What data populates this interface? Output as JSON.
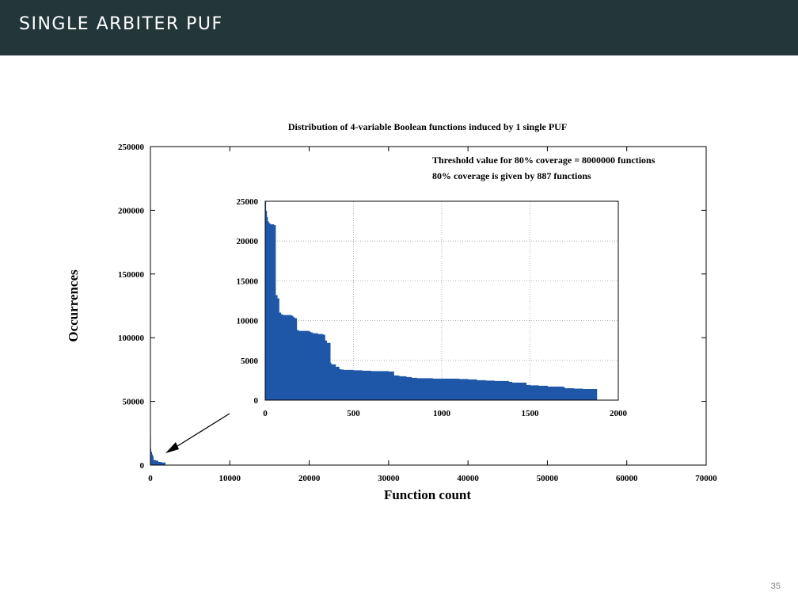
{
  "slide": {
    "title": "SINGLE ARBITER PUF",
    "page_number": "35"
  },
  "colors": {
    "header_bg": "#23373b",
    "bar_fill": "#1e56a8",
    "grid": "#a0a0a0"
  },
  "chart_data": [
    {
      "type": "area",
      "role": "main",
      "title": "Distribution of 4-variable Boolean functions induced by 1 single PUF",
      "xlabel": "Function count",
      "ylabel": "Occurrences",
      "xlim": [
        0,
        70000
      ],
      "ylim": [
        0,
        250000
      ],
      "xticks": [
        0,
        10000,
        20000,
        30000,
        40000,
        50000,
        60000,
        70000
      ],
      "yticks": [
        0,
        50000,
        100000,
        150000,
        200000,
        250000
      ],
      "annotations": [
        "Threshold value for 80% coverage = 8000000 functions",
        "80% coverage is given by 887 functions"
      ],
      "grid": false,
      "x": [
        0,
        30,
        60,
        100,
        200,
        300,
        400,
        700,
        1000,
        1400,
        1900
      ],
      "y": [
        24000,
        22000,
        13000,
        10500,
        8500,
        7000,
        4000,
        3500,
        2500,
        2000,
        1000
      ]
    },
    {
      "type": "area",
      "role": "inset",
      "xlim": [
        0,
        2000
      ],
      "ylim": [
        0,
        25000
      ],
      "xticks": [
        0,
        500,
        1000,
        1500,
        2000
      ],
      "yticks": [
        0,
        5000,
        10000,
        15000,
        20000,
        25000
      ],
      "grid": true,
      "x": [
        0,
        5,
        10,
        15,
        20,
        25,
        30,
        50,
        60,
        70,
        80,
        90,
        100,
        150,
        160,
        170,
        180,
        190,
        250,
        260,
        270,
        300,
        330,
        340,
        350,
        370,
        375,
        400,
        420,
        430,
        445,
        450,
        500,
        550,
        600,
        650,
        700,
        720,
        730,
        760,
        800,
        830,
        860,
        900,
        950,
        1000,
        1100,
        1150,
        1200,
        1250,
        1300,
        1380,
        1400,
        1450,
        1480,
        1500,
        1550,
        1600,
        1670,
        1690,
        1700,
        1750,
        1800,
        1820,
        1880
      ],
      "y": [
        25000,
        23800,
        23000,
        22500,
        22300,
        22200,
        22100,
        22000,
        13200,
        12800,
        11000,
        10800,
        10700,
        10600,
        10400,
        10300,
        8800,
        8700,
        8600,
        8500,
        8400,
        8300,
        8200,
        7500,
        7200,
        4700,
        4500,
        4200,
        3900,
        3850,
        3800,
        3800,
        3750,
        3700,
        3650,
        3650,
        3600,
        3600,
        3100,
        3000,
        2900,
        2800,
        2750,
        2750,
        2700,
        2700,
        2650,
        2600,
        2500,
        2450,
        2400,
        2300,
        2200,
        2200,
        1900,
        1850,
        1800,
        1700,
        1700,
        1600,
        1500,
        1450,
        1400,
        1400,
        1400
      ]
    }
  ]
}
